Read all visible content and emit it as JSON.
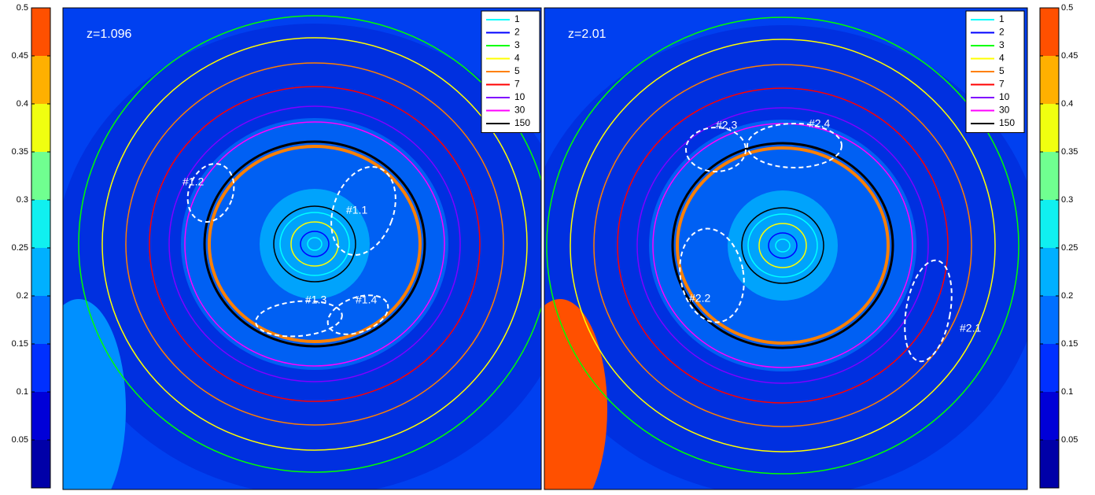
{
  "chart_data": {
    "type": "contour",
    "panels": [
      {
        "label": "z=1.096",
        "annotations": [
          "#1.1",
          "#1.2",
          "#1.3",
          "#1.4"
        ]
      },
      {
        "label": "z=2.01",
        "annotations": [
          "#2.1",
          "#2.2",
          "#2.3",
          "#2.4"
        ]
      }
    ],
    "legend": [
      {
        "name": "1",
        "color": "#00ffff"
      },
      {
        "name": "2",
        "color": "#0000ff"
      },
      {
        "name": "3",
        "color": "#00ff00"
      },
      {
        "name": "4",
        "color": "#ffff00"
      },
      {
        "name": "5",
        "color": "#ff8000"
      },
      {
        "name": "7",
        "color": "#ff0000"
      },
      {
        "name": "10",
        "color": "#8000ff"
      },
      {
        "name": "30",
        "color": "#ff00ff"
      },
      {
        "name": "150",
        "color": "#000000"
      }
    ],
    "clim": [
      0,
      0.5
    ],
    "cticks": [
      0.05,
      0.1,
      0.15,
      0.2,
      0.25,
      0.3,
      0.35,
      0.4,
      0.45,
      0.5
    ],
    "ccolors": [
      "#0000a8",
      "#0000d8",
      "#0030ff",
      "#0070ff",
      "#00b0ff",
      "#10f0f0",
      "#70ff90",
      "#f0ff10",
      "#ffb000",
      "#ff5000"
    ]
  }
}
